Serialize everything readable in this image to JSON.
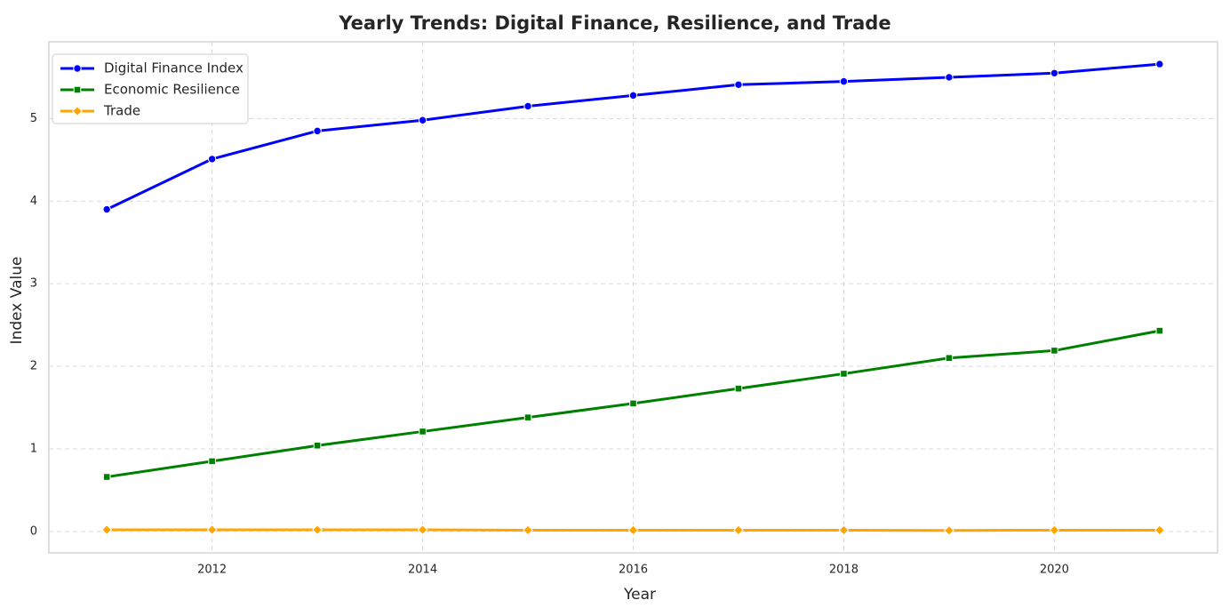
{
  "chart_data": {
    "type": "line",
    "title": "Yearly Trends: Digital Finance, Resilience, and Trade",
    "xlabel": "Year",
    "ylabel": "Index Value",
    "x": [
      2011,
      2012,
      2013,
      2014,
      2015,
      2016,
      2017,
      2018,
      2019,
      2020,
      2021
    ],
    "xlim": [
      2010.45,
      2021.55
    ],
    "ylim": [
      -0.26,
      5.93
    ],
    "xticks": [
      2012,
      2014,
      2016,
      2018,
      2020
    ],
    "yticks": [
      0,
      1,
      2,
      3,
      4,
      5
    ],
    "grid": true,
    "legend_position": "top-left",
    "series": [
      {
        "name": "Digital Finance Index",
        "color": "#0000ff",
        "marker": "circle",
        "values": [
          3.9,
          4.51,
          4.85,
          4.98,
          5.15,
          5.28,
          5.41,
          5.45,
          5.5,
          5.55,
          5.66
        ]
      },
      {
        "name": "Economic Resilience",
        "color": "#008000",
        "marker": "square",
        "values": [
          0.66,
          0.85,
          1.04,
          1.21,
          1.38,
          1.55,
          1.73,
          1.91,
          2.1,
          2.19,
          2.43
        ]
      },
      {
        "name": "Trade",
        "color": "#ffa500",
        "marker": "diamond",
        "values": [
          0.02,
          0.02,
          0.02,
          0.02,
          0.015,
          0.015,
          0.015,
          0.015,
          0.012,
          0.015,
          0.015
        ]
      }
    ]
  }
}
